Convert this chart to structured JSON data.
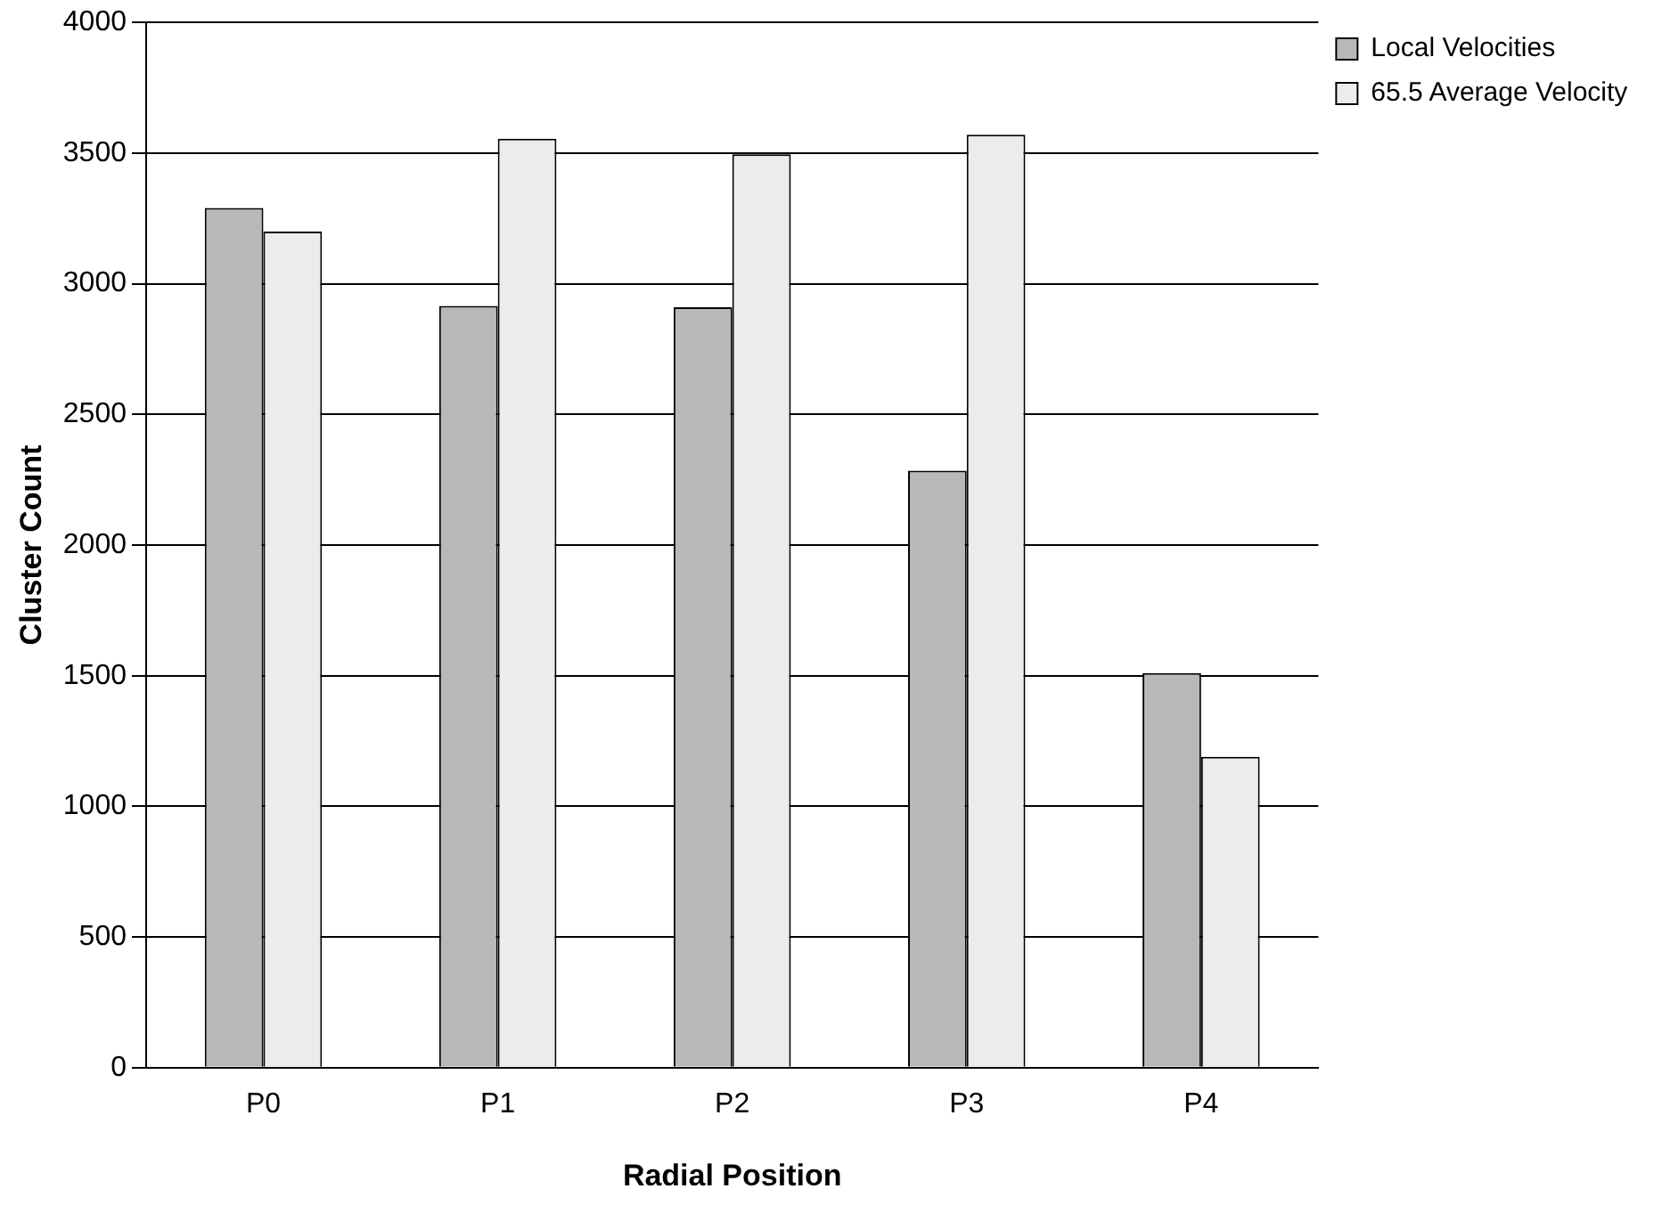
{
  "chart_data": {
    "type": "bar",
    "xlabel": "Radial Position",
    "ylabel": "Cluster Count",
    "categories": [
      "P0",
      "P1",
      "P2",
      "P3",
      "P4"
    ],
    "series": [
      {
        "name": "Local Velocities",
        "color": "#b8b8b8",
        "values": [
          3290,
          2915,
          2910,
          2285,
          1510
        ]
      },
      {
        "name": "65.5 Average Velocity",
        "color": "#ececec",
        "values": [
          3200,
          3555,
          3495,
          3570,
          1190
        ]
      }
    ],
    "ylim": [
      0,
      4000
    ],
    "yticks": [
      0,
      500,
      1000,
      1500,
      2000,
      2500,
      3000,
      3500,
      4000
    ],
    "grid": "y",
    "legend": "top right"
  }
}
